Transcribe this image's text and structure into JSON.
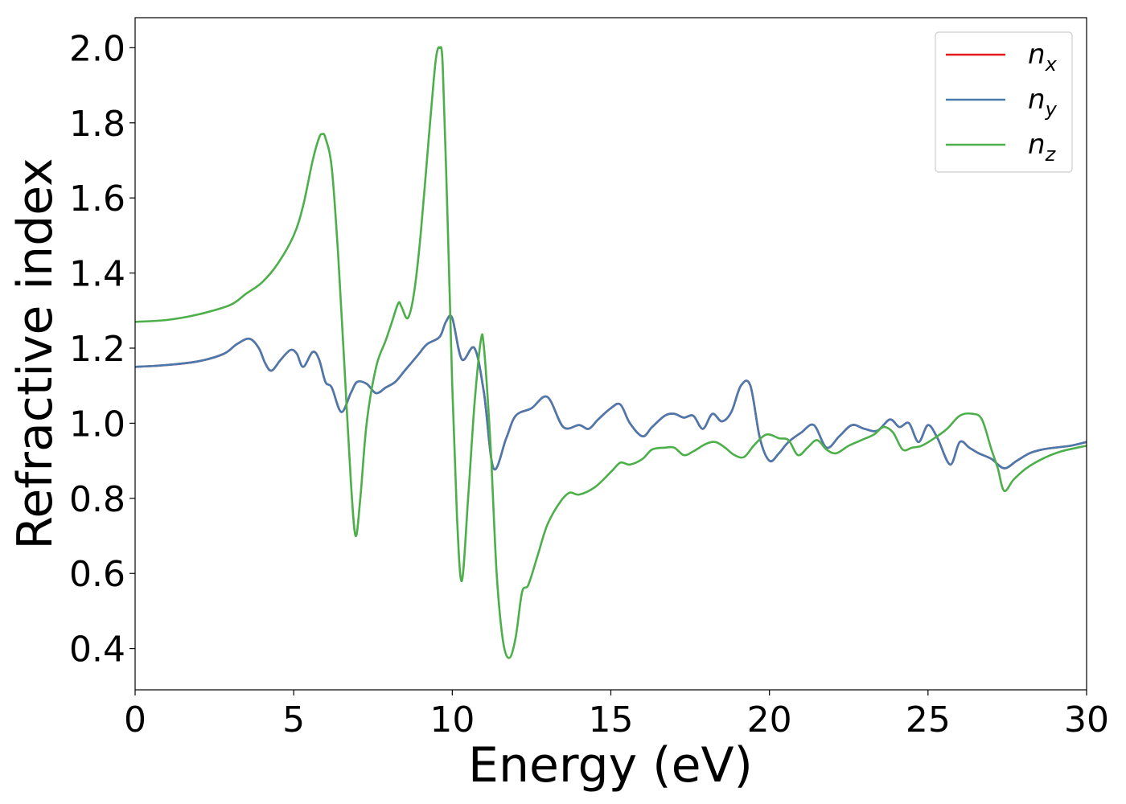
{
  "chart_data": {
    "type": "line",
    "xlabel": "Energy (eV)",
    "ylabel": "Refractive index",
    "xlim": [
      0,
      30
    ],
    "ylim": [
      0.29,
      2.08
    ],
    "xticks": [
      0,
      5,
      10,
      15,
      20,
      25,
      30
    ],
    "yticks": [
      0.4,
      0.6,
      0.8,
      1.0,
      1.2,
      1.4,
      1.6,
      1.8,
      2.0
    ],
    "xtick_labels": [
      "0",
      "5",
      "10",
      "15",
      "20",
      "25",
      "30"
    ],
    "ytick_labels": [
      "0.4",
      "0.6",
      "0.8",
      "1.0",
      "1.2",
      "1.4",
      "1.6",
      "1.8",
      "2.0"
    ],
    "grid": false,
    "legend_position": "top-right",
    "series": [
      {
        "name": "n",
        "subscript": "x",
        "color": "#e41a1c",
        "x": [
          0,
          1,
          2,
          2.8,
          3.2,
          3.6,
          3.9,
          4.1,
          4.3,
          4.6,
          4.9,
          5.1,
          5.3,
          5.6,
          5.8,
          6.0,
          6.2,
          6.5,
          6.8,
          7.0,
          7.3,
          7.6,
          7.9,
          8.2,
          8.5,
          8.9,
          9.2,
          9.6,
          9.8,
          10.0,
          10.3,
          10.7,
          11.0,
          11.3,
          11.7,
          12.0,
          12.5,
          13.0,
          13.5,
          14.0,
          14.3,
          14.6,
          15.0,
          15.3,
          15.6,
          16.0,
          16.3,
          16.7,
          17.0,
          17.3,
          17.6,
          17.9,
          18.2,
          18.5,
          18.8,
          19.1,
          19.4,
          19.7,
          20.0,
          20.3,
          20.6,
          21.0,
          21.4,
          21.8,
          22.2,
          22.6,
          23.0,
          23.4,
          23.8,
          24.1,
          24.4,
          24.7,
          25.0,
          25.3,
          25.7,
          26.0,
          26.3,
          26.6,
          27.0,
          27.4,
          27.8,
          28.2,
          28.6,
          29.0,
          29.5,
          30.0
        ],
        "y": [
          1.15,
          1.155,
          1.165,
          1.185,
          1.21,
          1.225,
          1.2,
          1.16,
          1.14,
          1.17,
          1.195,
          1.185,
          1.15,
          1.19,
          1.17,
          1.11,
          1.095,
          1.03,
          1.08,
          1.11,
          1.105,
          1.08,
          1.095,
          1.11,
          1.14,
          1.18,
          1.21,
          1.23,
          1.27,
          1.28,
          1.17,
          1.2,
          1.08,
          0.88,
          0.96,
          1.02,
          1.04,
          1.07,
          0.99,
          0.995,
          0.985,
          1.01,
          1.04,
          1.05,
          1.0,
          0.965,
          0.99,
          1.02,
          1.025,
          1.015,
          1.02,
          0.985,
          1.025,
          1.005,
          1.03,
          1.1,
          1.1,
          0.96,
          0.9,
          0.92,
          0.95,
          0.975,
          0.995,
          0.935,
          0.965,
          0.995,
          0.985,
          0.98,
          1.01,
          0.99,
          1.0,
          0.95,
          0.995,
          0.96,
          0.89,
          0.95,
          0.935,
          0.92,
          0.905,
          0.88,
          0.9,
          0.92,
          0.93,
          0.935,
          0.94,
          0.95
        ]
      },
      {
        "name": "n",
        "subscript": "y",
        "color": "#4a7aad",
        "x": [
          0,
          1,
          2,
          2.8,
          3.2,
          3.6,
          3.9,
          4.1,
          4.3,
          4.6,
          4.9,
          5.1,
          5.3,
          5.6,
          5.8,
          6.0,
          6.2,
          6.5,
          6.8,
          7.0,
          7.3,
          7.6,
          7.9,
          8.2,
          8.5,
          8.9,
          9.2,
          9.6,
          9.8,
          10.0,
          10.3,
          10.7,
          11.0,
          11.3,
          11.7,
          12.0,
          12.5,
          13.0,
          13.5,
          14.0,
          14.3,
          14.6,
          15.0,
          15.3,
          15.6,
          16.0,
          16.3,
          16.7,
          17.0,
          17.3,
          17.6,
          17.9,
          18.2,
          18.5,
          18.8,
          19.1,
          19.4,
          19.7,
          20.0,
          20.3,
          20.6,
          21.0,
          21.4,
          21.8,
          22.2,
          22.6,
          23.0,
          23.4,
          23.8,
          24.1,
          24.4,
          24.7,
          25.0,
          25.3,
          25.7,
          26.0,
          26.3,
          26.6,
          27.0,
          27.4,
          27.8,
          28.2,
          28.6,
          29.0,
          29.5,
          30.0
        ],
        "y": [
          1.15,
          1.155,
          1.165,
          1.185,
          1.21,
          1.225,
          1.2,
          1.16,
          1.14,
          1.17,
          1.195,
          1.185,
          1.15,
          1.19,
          1.17,
          1.11,
          1.095,
          1.03,
          1.08,
          1.11,
          1.105,
          1.08,
          1.095,
          1.11,
          1.14,
          1.18,
          1.21,
          1.23,
          1.27,
          1.28,
          1.17,
          1.2,
          1.08,
          0.88,
          0.96,
          1.02,
          1.04,
          1.07,
          0.99,
          0.995,
          0.985,
          1.01,
          1.04,
          1.05,
          1.0,
          0.965,
          0.99,
          1.02,
          1.025,
          1.015,
          1.02,
          0.985,
          1.025,
          1.005,
          1.03,
          1.1,
          1.1,
          0.96,
          0.9,
          0.92,
          0.95,
          0.975,
          0.995,
          0.935,
          0.965,
          0.995,
          0.985,
          0.98,
          1.01,
          0.99,
          1.0,
          0.95,
          0.995,
          0.96,
          0.89,
          0.95,
          0.935,
          0.92,
          0.905,
          0.88,
          0.9,
          0.92,
          0.93,
          0.935,
          0.94,
          0.95
        ]
      },
      {
        "name": "n",
        "subscript": "z",
        "color": "#4daf4a",
        "x": [
          0,
          1,
          2,
          3,
          3.5,
          4,
          4.5,
          5,
          5.3,
          5.6,
          5.8,
          5.9,
          6.0,
          6.2,
          6.4,
          6.6,
          6.8,
          6.95,
          7.1,
          7.3,
          7.6,
          7.9,
          8.1,
          8.3,
          8.4,
          8.6,
          8.8,
          9.0,
          9.2,
          9.4,
          9.5,
          9.6,
          9.7,
          9.85,
          10.0,
          10.15,
          10.3,
          10.5,
          10.7,
          10.9,
          11.0,
          11.2,
          11.4,
          11.6,
          11.8,
          12.0,
          12.2,
          12.4,
          12.7,
          13.0,
          13.4,
          13.7,
          14.0,
          14.5,
          15.0,
          15.3,
          15.6,
          16.0,
          16.3,
          16.7,
          17.0,
          17.3,
          17.6,
          18.0,
          18.3,
          18.6,
          18.9,
          19.2,
          19.5,
          19.8,
          20.0,
          20.3,
          20.6,
          20.9,
          21.2,
          21.5,
          21.8,
          22.1,
          22.5,
          22.9,
          23.3,
          23.6,
          23.9,
          24.2,
          24.5,
          24.8,
          25.2,
          25.6,
          26.0,
          26.4,
          26.7,
          27.0,
          27.2,
          27.4,
          27.7,
          28.1,
          28.6,
          29.2,
          30.0
        ],
        "y": [
          1.27,
          1.275,
          1.29,
          1.315,
          1.345,
          1.375,
          1.425,
          1.5,
          1.58,
          1.7,
          1.76,
          1.77,
          1.76,
          1.68,
          1.45,
          1.15,
          0.85,
          0.7,
          0.8,
          1.0,
          1.15,
          1.22,
          1.27,
          1.32,
          1.31,
          1.28,
          1.35,
          1.5,
          1.7,
          1.9,
          1.98,
          2.0,
          1.95,
          1.55,
          1.1,
          0.75,
          0.58,
          0.8,
          1.05,
          1.22,
          1.2,
          0.95,
          0.6,
          0.42,
          0.375,
          0.43,
          0.55,
          0.57,
          0.65,
          0.73,
          0.79,
          0.815,
          0.81,
          0.83,
          0.87,
          0.895,
          0.89,
          0.905,
          0.93,
          0.935,
          0.935,
          0.915,
          0.925,
          0.945,
          0.95,
          0.935,
          0.915,
          0.91,
          0.94,
          0.965,
          0.97,
          0.96,
          0.955,
          0.915,
          0.935,
          0.955,
          0.93,
          0.92,
          0.94,
          0.955,
          0.97,
          0.99,
          0.975,
          0.93,
          0.935,
          0.94,
          0.96,
          0.985,
          1.02,
          1.025,
          1.01,
          0.93,
          0.88,
          0.82,
          0.85,
          0.88,
          0.905,
          0.925,
          0.94
        ]
      }
    ]
  }
}
